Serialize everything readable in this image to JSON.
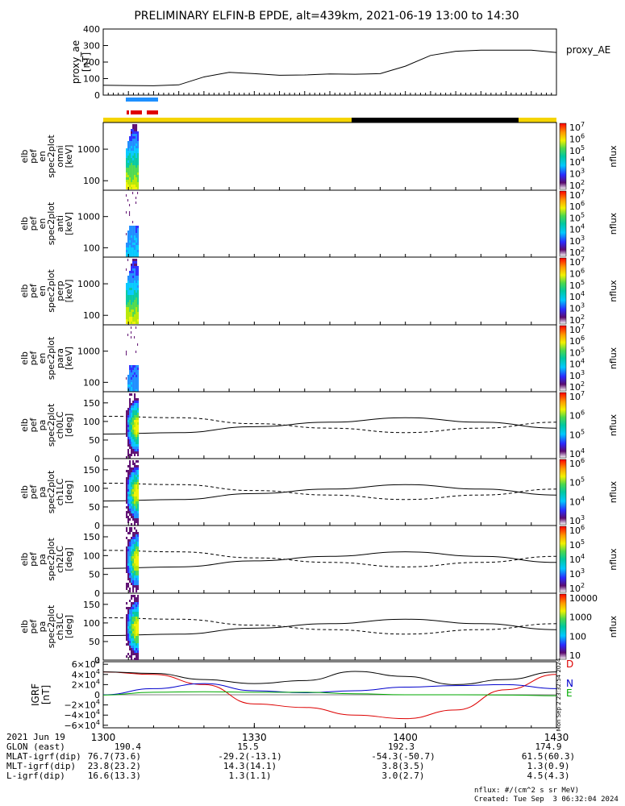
{
  "title": "PRELIMINARY ELFIN-B EPDE, alt=439km, 2021-06-19 13:00 to 14:30",
  "colors": {
    "day_bar": "#f5d400",
    "night_bar": "#000000",
    "blue_bar": "#1e90ff",
    "red_bar": "#e00000",
    "B_x": "#dd0000",
    "B_y": "#0000cc",
    "B_z": "#00aa00",
    "B_total": "#000000"
  },
  "chart_data": [
    {
      "type": "line",
      "panel": "proxy_ae",
      "ylabel": [
        "proxy_ae",
        "[nT]"
      ],
      "legend": "proxy_AE",
      "yticks": [
        "400",
        "300",
        "200",
        "100",
        "0"
      ],
      "ylim": [
        0,
        400
      ],
      "xlim_min": [
        0,
        90
      ],
      "x_min": [
        0,
        5,
        10,
        15,
        20,
        25,
        30,
        35,
        40,
        45,
        50,
        55,
        60,
        65,
        70,
        75,
        80,
        85,
        90
      ],
      "values": [
        60,
        58,
        57,
        62,
        110,
        138,
        130,
        120,
        122,
        128,
        126,
        130,
        175,
        240,
        265,
        272,
        272,
        272,
        258
      ]
    },
    {
      "type": "heatmap",
      "panel": "omni",
      "ylabel": [
        "elb",
        "pef",
        "en",
        "spec2plot",
        "omni",
        "[keV]"
      ],
      "yticks": [
        "1000",
        "100"
      ],
      "scale": "log",
      "colorbar": {
        "label": "nflux",
        "ticks": [
          "10^7",
          "10^6",
          "10^5",
          "10^4",
          "10^3",
          "10^2"
        ]
      },
      "xlim_min": [
        0,
        90
      ],
      "data_window_min": [
        4.5,
        7.0
      ]
    },
    {
      "type": "heatmap",
      "panel": "anti",
      "ylabel": [
        "elb",
        "pef",
        "en",
        "spec2plot",
        "anti",
        "[keV]"
      ],
      "yticks": [
        "1000",
        "100"
      ],
      "scale": "log",
      "colorbar": {
        "label": "nflux",
        "ticks": [
          "10^7",
          "10^6",
          "10^5",
          "10^4",
          "10^3",
          "10^2"
        ]
      },
      "xlim_min": [
        0,
        90
      ],
      "data_window_min": [
        4.5,
        7.0
      ]
    },
    {
      "type": "heatmap",
      "panel": "perp",
      "ylabel": [
        "elb",
        "pef",
        "en",
        "spec2plot",
        "perp",
        "[keV]"
      ],
      "yticks": [
        "1000",
        "100"
      ],
      "scale": "log",
      "colorbar": {
        "label": "nflux",
        "ticks": [
          "10^7",
          "10^6",
          "10^5",
          "10^4",
          "10^3",
          "10^2"
        ]
      },
      "xlim_min": [
        0,
        90
      ],
      "data_window_min": [
        4.5,
        7.0
      ]
    },
    {
      "type": "heatmap",
      "panel": "para",
      "ylabel": [
        "elb",
        "pef",
        "en",
        "spec2plot",
        "para",
        "[keV]"
      ],
      "yticks": [
        "1000",
        "100"
      ],
      "scale": "log",
      "colorbar": {
        "label": "nflux",
        "ticks": [
          "10^7",
          "10^6",
          "10^5",
          "10^4",
          "10^3",
          "10^2"
        ]
      },
      "xlim_min": [
        0,
        90
      ],
      "data_window_min": [
        4.5,
        7.0
      ]
    },
    {
      "type": "heatmap",
      "panel": "ch0LC",
      "ylabel": [
        "elb",
        "pef",
        "pa",
        "spec2plot",
        "ch0LC",
        "[deg]"
      ],
      "yticks": [
        "150",
        "100",
        "50",
        "0"
      ],
      "ylim": [
        0,
        180
      ],
      "colorbar": {
        "label": "nflux",
        "ticks": [
          "10^7",
          "10^6",
          "10^5",
          "10^4"
        ]
      },
      "xlim_min": [
        0,
        90
      ],
      "data_window_min": [
        4.5,
        7.0
      ],
      "loss_cone_deg": [
        66,
        70,
        86,
        98,
        110,
        98,
        82
      ],
      "anti_loss_cone_deg": [
        114,
        110,
        94,
        82,
        70,
        82,
        98
      ]
    },
    {
      "type": "heatmap",
      "panel": "ch1LC",
      "ylabel": [
        "elb",
        "pef",
        "pa",
        "spec2plot",
        "ch1LC",
        "[deg]"
      ],
      "yticks": [
        "150",
        "100",
        "50",
        "0"
      ],
      "ylim": [
        0,
        180
      ],
      "colorbar": {
        "label": "nflux",
        "ticks": [
          "10^6",
          "10^5",
          "10^4",
          "10^3"
        ]
      },
      "xlim_min": [
        0,
        90
      ],
      "data_window_min": [
        4.5,
        7.0
      ],
      "loss_cone_deg": [
        66,
        70,
        86,
        98,
        110,
        98,
        82
      ],
      "anti_loss_cone_deg": [
        114,
        110,
        94,
        82,
        70,
        82,
        98
      ]
    },
    {
      "type": "heatmap",
      "panel": "ch2LC",
      "ylabel": [
        "elb",
        "pef",
        "pa",
        "spec2plot",
        "ch2LC",
        "[deg]"
      ],
      "yticks": [
        "150",
        "100",
        "50",
        "0"
      ],
      "ylim": [
        0,
        180
      ],
      "colorbar": {
        "label": "nflux",
        "ticks": [
          "10^6",
          "10^5",
          "10^4",
          "10^3",
          "10^2"
        ]
      },
      "xlim_min": [
        0,
        90
      ],
      "data_window_min": [
        4.5,
        7.0
      ],
      "loss_cone_deg": [
        66,
        70,
        86,
        98,
        110,
        98,
        82
      ],
      "anti_loss_cone_deg": [
        114,
        110,
        94,
        82,
        70,
        82,
        98
      ]
    },
    {
      "type": "heatmap",
      "panel": "ch3LC",
      "ylabel": [
        "elb",
        "pef",
        "pa",
        "spec2plot",
        "ch3LC",
        "[deg]"
      ],
      "yticks": [
        "150",
        "100",
        "50",
        "0"
      ],
      "ylim": [
        0,
        180
      ],
      "colorbar": {
        "label": "nflux",
        "ticks": [
          "10000",
          "1000",
          "100",
          "10"
        ]
      },
      "xlim_min": [
        0,
        90
      ],
      "data_window_min": [
        4.5,
        7.0
      ],
      "loss_cone_deg": [
        66,
        70,
        86,
        98,
        110,
        98,
        82
      ],
      "anti_loss_cone_deg": [
        114,
        110,
        94,
        82,
        70,
        82,
        98
      ]
    },
    {
      "type": "line",
      "panel": "IGRF",
      "ylabel": [
        "IGRF",
        "[nT]"
      ],
      "yticks": [
        "6×10^4",
        "4×10^4",
        "2×10^4",
        "0",
        "−2×10^4",
        "−4×10^4",
        "−6×10^4"
      ],
      "ylim": [
        -65000,
        65000
      ],
      "side_note": "Mon Sep 2 23:32:54 2024",
      "xlim_min": [
        0,
        90
      ],
      "x_min": [
        0,
        10,
        20,
        30,
        40,
        50,
        60,
        70,
        80,
        90
      ],
      "series": [
        {
          "name": "D",
          "color": "#dd0000",
          "values": [
            45000,
            40000,
            20000,
            -18000,
            -25000,
            -40000,
            -47000,
            -30000,
            10000,
            40000
          ]
        },
        {
          "name": "N",
          "color": "#0000cc",
          "values": [
            0,
            12000,
            22000,
            8000,
            4000,
            8000,
            15000,
            18000,
            20000,
            12000
          ]
        },
        {
          "name": "E",
          "color": "#00aa00",
          "values": [
            -500,
            5000,
            6000,
            5000,
            5000,
            2000,
            0,
            0,
            -500,
            -2000
          ]
        },
        {
          "name": "",
          "color": "#000000",
          "values": [
            45000,
            42000,
            30000,
            22000,
            28000,
            46000,
            36000,
            20000,
            30000,
            45000
          ]
        }
      ]
    }
  ],
  "time_axis": {
    "date_label": "2021 Jun 19",
    "ticks": [
      "1300",
      "1330",
      "1400",
      "1430"
    ],
    "tick_minutes": [
      0,
      30,
      60,
      90
    ]
  },
  "footer_rows": [
    {
      "label": "GLON (east)",
      "values": [
        "190.4",
        "15.5",
        "192.3",
        "174.9"
      ]
    },
    {
      "label": "MLAT-igrf(dip)",
      "values": [
        "76.7(73.6)",
        "-29.2(-13.1)",
        "-54.3(-50.7)",
        "61.5(60.3)"
      ]
    },
    {
      "label": "MLT-igrf(dip)",
      "values": [
        "23.8(23.2)",
        "14.3(14.1)",
        "3.8(3.5)",
        "1.3(0.9)"
      ]
    },
    {
      "label": "L-igrf(dip)",
      "values": [
        "16.6(13.3)",
        "1.3(1.1)",
        "3.0(2.7)",
        "4.5(4.3)"
      ]
    }
  ],
  "units_note": "nflux: #/(cm^2 s sr MeV)",
  "created_note": "Created: Tue Sep  3 06:32:04 2024"
}
